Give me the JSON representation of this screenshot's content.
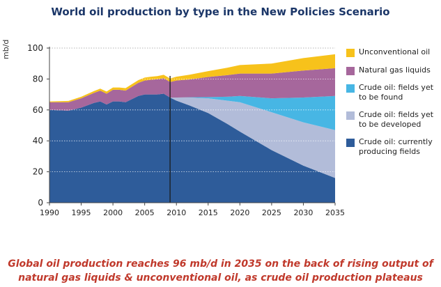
{
  "title": "World oil production by type in the New Policies Scenario",
  "caption_line1": "Global oil production reaches 96 mb/d in 2035 on the back of rising output of",
  "caption_line2": "natural gas liquids & unconventional oil, as crude oil production plateaus",
  "chart_data": {
    "type": "area",
    "stacked": true,
    "title": "World oil production by type in the New Policies Scenario",
    "xlabel": "",
    "ylabel": "mb/d",
    "xlim": [
      1990,
      2035
    ],
    "ylim": [
      0,
      100
    ],
    "grid": true,
    "legend_position": "right",
    "divider_year": 2009,
    "xticks": [
      1990,
      1995,
      2000,
      2005,
      2010,
      2015,
      2020,
      2025,
      2030,
      2035
    ],
    "yticks": [
      0,
      20,
      40,
      60,
      80,
      100
    ],
    "colors": {
      "Unconventional oil": "#f7c21b",
      "Natural gas liquids": "#a6679c",
      "Crude oil: fields yet to be found": "#47b6e4",
      "Crude oil: fields yet to be developed": "#b2bcd9",
      "Crude oil: currently producing fields": "#2e5c9a"
    },
    "x": [
      1990,
      1993,
      1995,
      1997,
      1998,
      1999,
      2000,
      2001,
      2002,
      2003,
      2004,
      2005,
      2006,
      2007,
      2008,
      2009,
      2010,
      2012,
      2015,
      2018,
      2020,
      2025,
      2030,
      2035
    ],
    "series": [
      {
        "name": "Crude oil: currently producing fields",
        "values": [
          60,
          59.5,
          61.5,
          64.5,
          65.5,
          63.5,
          65.5,
          65.5,
          65,
          67,
          69,
          70,
          70,
          70,
          70.5,
          68,
          66,
          63,
          58,
          51,
          46,
          34,
          24,
          16
        ]
      },
      {
        "name": "Crude oil: fields yet to be developed",
        "values": [
          0,
          0,
          0,
          0,
          0,
          0,
          0,
          0,
          0,
          0,
          0,
          0,
          0,
          0,
          0,
          0,
          2,
          5,
          9.5,
          15,
          19,
          24.5,
          28,
          31
        ]
      },
      {
        "name": "Crude oil: fields yet to be found",
        "values": [
          0,
          0,
          0,
          0,
          0,
          0,
          0,
          0,
          0,
          0,
          0,
          0,
          0,
          0,
          0,
          0,
          0,
          0.2,
          0.8,
          2.5,
          4,
          9,
          16,
          22
        ]
      },
      {
        "name": "Natural gas liquids",
        "values": [
          5,
          5.5,
          6,
          6.5,
          7,
          7,
          7.5,
          7.5,
          7.5,
          8,
          8.5,
          9,
          9.5,
          9.8,
          10,
          10,
          11,
          11.5,
          13,
          14,
          14.5,
          16,
          17.5,
          18
        ]
      },
      {
        "name": "Unconventional oil",
        "values": [
          0.5,
          0.8,
          1,
          1.2,
          1.3,
          1.4,
          1.5,
          1.5,
          1.6,
          1.7,
          1.8,
          1.9,
          2,
          2.1,
          2.2,
          2.3,
          2.5,
          3,
          3.8,
          4.8,
          5.5,
          6.5,
          8,
          9
        ]
      }
    ],
    "legend_order": [
      "Unconventional oil",
      "Natural gas liquids",
      "Crude oil: fields yet to be found",
      "Crude oil: fields yet to be developed",
      "Crude oil: currently producing fields"
    ],
    "legend_text": [
      [
        "Unconventional oil"
      ],
      [
        "Natural gas liquids"
      ],
      [
        "Crude oil: fields yet",
        "to be found"
      ],
      [
        "Crude oil: fields yet",
        "to be developed"
      ],
      [
        "Crude oil: currently",
        "producing fields"
      ]
    ]
  }
}
